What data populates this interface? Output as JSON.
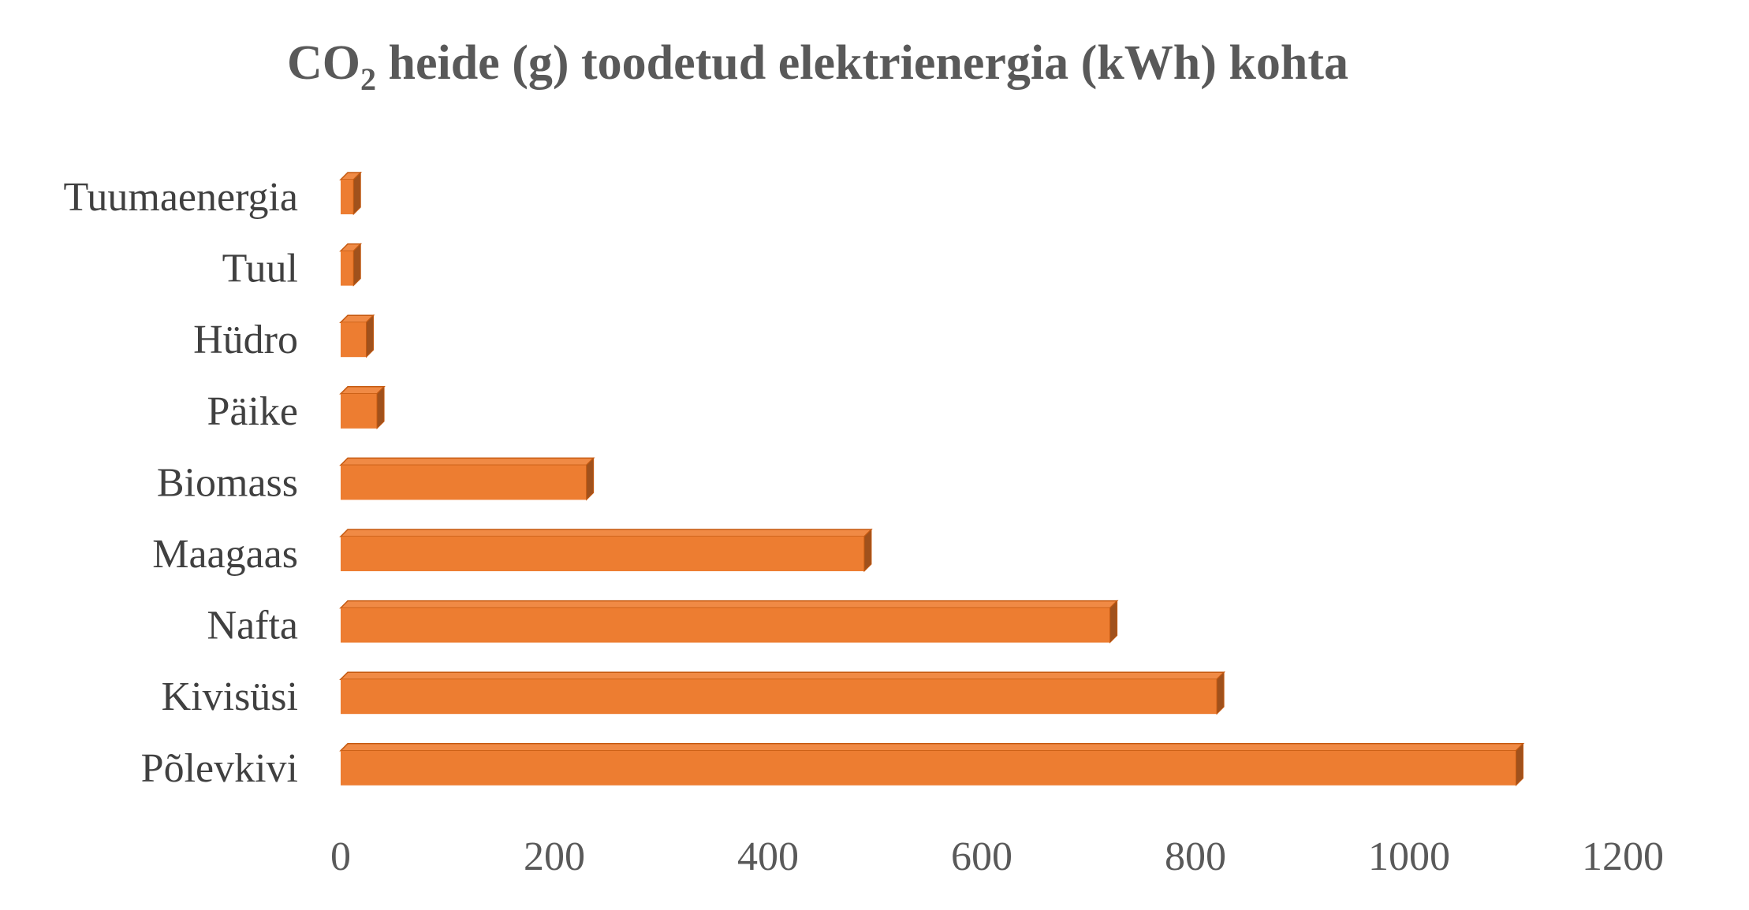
{
  "chart_data": {
    "type": "bar",
    "orientation": "horizontal",
    "style": "3d-clustered-bar",
    "title_main": "CO",
    "title_subscript": "2",
    "title_rest": " heide (g) toodetud elektrienergia (kWh) kohta",
    "categories": [
      "Tuumaenergia",
      "Tuul",
      "Hüdro",
      "Päike",
      "Biomass",
      "Maagaas",
      "Nafta",
      "Kivisüsi",
      "Põlevkivi"
    ],
    "values": [
      12,
      12,
      24,
      34,
      230,
      490,
      720,
      820,
      1100
    ],
    "xlim": [
      0,
      1200
    ],
    "xticks": [
      "0",
      "200",
      "400",
      "600",
      "800",
      "1000",
      "1200"
    ],
    "grid": false,
    "legend": "none",
    "colors": {
      "bar_front": "#ED7D31",
      "bar_top": "#F08A45",
      "bar_side": "#A0511C",
      "bar_edge": "#C55A11",
      "title": "#595959",
      "labels": "#404040"
    }
  }
}
